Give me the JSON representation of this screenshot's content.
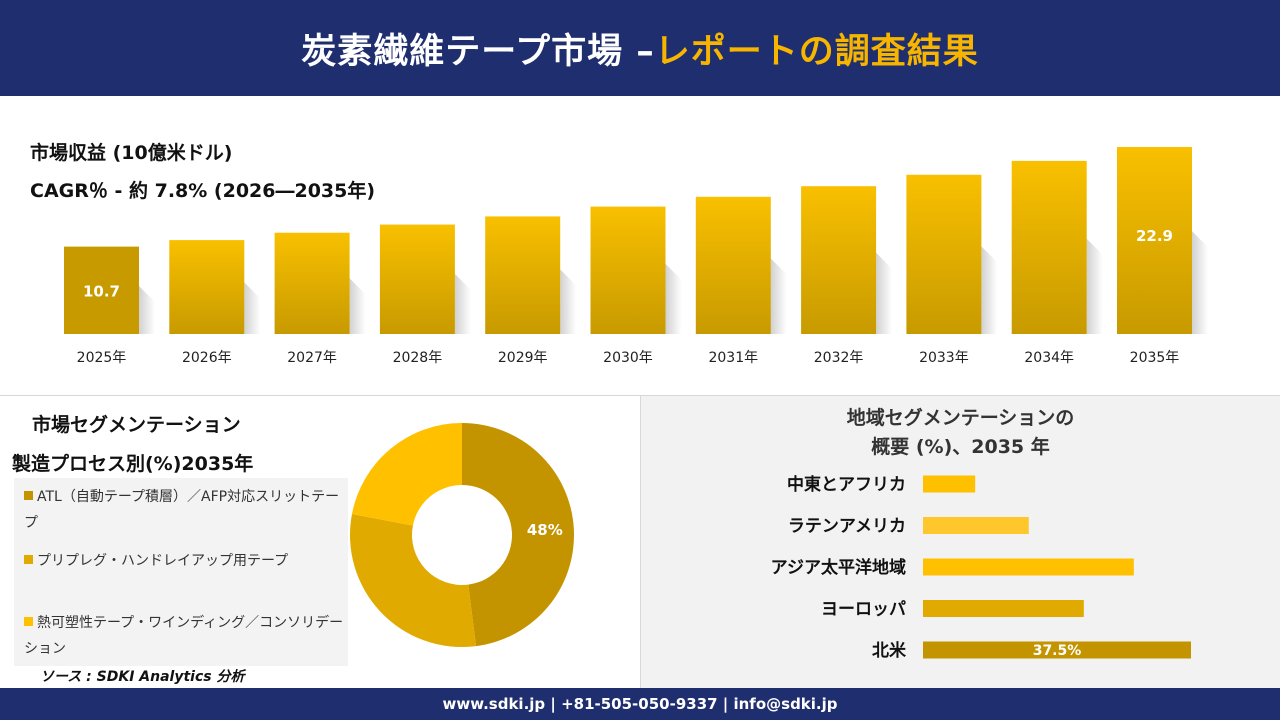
{
  "header": {
    "title_main": "炭素繊維テープ市場 –",
    "title_highlight": "レポートの調査結果"
  },
  "colors": {
    "header_bg": "#1f2e6e",
    "accent": "#f7b500",
    "bar_light": "#f9c000",
    "bar_dark": "#c79a00",
    "footer_bg": "#1f2e6e"
  },
  "revenue": {
    "label": "市場収益 (10億米ドル)",
    "cagr": "CAGR％ - 約 7.8% (2026―2035年)"
  },
  "chart_data": [
    {
      "type": "bar",
      "categories": [
        "2025年",
        "2026年",
        "2027年",
        "2028年",
        "2029年",
        "2030年",
        "2031年",
        "2032年",
        "2033年",
        "2034年",
        "2035年"
      ],
      "values": [
        10.7,
        11.5,
        12.4,
        13.4,
        14.4,
        15.6,
        16.8,
        18.1,
        19.5,
        21.2,
        22.9
      ],
      "data_labels": {
        "0": "10.7",
        "10": "22.9"
      }
    },
    {
      "type": "pie",
      "title": "市場セグメンテーション",
      "subtitle": "製造プロセス別(%)2035年",
      "categories": [
        "ATL（自動テープ積層）／AFP対応スリットテープ",
        "プリプレグ・ハンドレイアップ用テープ",
        "熱可塑性テープ・ワインディング／コンソリデーション"
      ],
      "values": [
        48,
        30,
        22
      ],
      "colors": [
        "#c49300",
        "#e0aa00",
        "#ffc000"
      ],
      "data_labels": {
        "0": "48%"
      }
    },
    {
      "type": "bar",
      "orientation": "horizontal",
      "title": "地域セグメンテーションの",
      "subtitle": "概要 (%)、2035 年",
      "categories": [
        "中東とアフリカ",
        "ラテンアメリカ",
        "アジア太平洋地域",
        "ヨーロッパ",
        "北米"
      ],
      "values": [
        7.3,
        14.8,
        29.5,
        22.5,
        37.5
      ],
      "colors": [
        "#ffc000",
        "#ffc72c",
        "#ffc000",
        "#e0aa00",
        "#c49300"
      ],
      "data_labels": {
        "4": "37.5%"
      }
    }
  ],
  "source": "ソース : SDKI Analytics 分析",
  "footer": {
    "contact": "www.sdki.jp | +81-505-050-9337 | info@sdki.jp"
  }
}
